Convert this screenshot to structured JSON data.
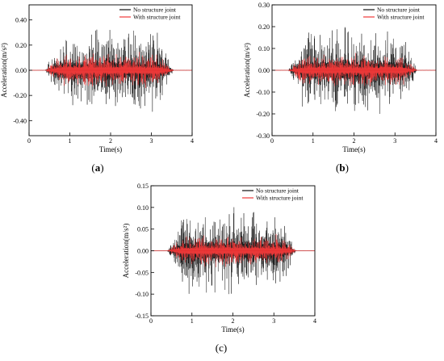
{
  "chart_data": [
    {
      "type": "line",
      "panel_label": "a",
      "xlabel": "Time(s)",
      "ylabel": "Acceleration(m/s²)",
      "xlim": [
        0,
        4
      ],
      "ylim": [
        -0.52,
        0.52
      ],
      "x_ticks": [
        0,
        1,
        2,
        3,
        4
      ],
      "x_tick_labels": [
        "0",
        "1",
        "2",
        "3",
        "4"
      ],
      "y_ticks": [
        -0.4,
        -0.2,
        0.0,
        0.2,
        0.4
      ],
      "y_tick_labels": [
        "-0.40",
        "-0.20",
        "0.00",
        "0.20",
        "0.40"
      ],
      "legend_position": "top-right",
      "series": [
        {
          "name": "No structure joint",
          "color": "#111111",
          "signal_start_s": 0.5,
          "signal_end_s": 3.4,
          "peak_amplitude": 0.36
        },
        {
          "name": "With structure joint",
          "color": "#f03a3a",
          "signal_start_s": 0.5,
          "signal_end_s": 3.4,
          "peak_amplitude": 0.15
        }
      ]
    },
    {
      "type": "line",
      "panel_label": "b",
      "xlabel": "Time(s)",
      "ylabel": "Acceleration(m/s²)",
      "xlim": [
        0,
        4
      ],
      "ylim": [
        -0.3,
        0.3
      ],
      "x_ticks": [
        0,
        1,
        2,
        3,
        4
      ],
      "x_tick_labels": [
        "0",
        "1",
        "2",
        "3",
        "4"
      ],
      "y_ticks": [
        -0.3,
        -0.2,
        -0.1,
        0.0,
        0.1,
        0.2,
        0.3
      ],
      "y_tick_labels": [
        "-0.30",
        "-0.20",
        "-0.10",
        "0.00",
        "0.10",
        "0.20",
        "0.30"
      ],
      "legend_position": "top-right",
      "series": [
        {
          "name": "No structure joint",
          "color": "#111111",
          "signal_start_s": 0.5,
          "signal_end_s": 3.4,
          "peak_amplitude": 0.21
        },
        {
          "name": "With structure joint",
          "color": "#f03a3a",
          "signal_start_s": 0.5,
          "signal_end_s": 3.4,
          "peak_amplitude": 0.08
        }
      ]
    },
    {
      "type": "line",
      "panel_label": "c",
      "xlabel": "Time(s)",
      "ylabel": "Acceleration(m/s²)",
      "xlim": [
        0,
        4
      ],
      "ylim": [
        -0.15,
        0.15
      ],
      "x_ticks": [
        0,
        1,
        2,
        3,
        4
      ],
      "x_tick_labels": [
        "0",
        "1",
        "2",
        "3",
        "4"
      ],
      "y_ticks": [
        -0.15,
        -0.1,
        -0.05,
        0.0,
        0.05,
        0.1,
        0.15
      ],
      "y_tick_labels": [
        "-0.15",
        "-0.10",
        "-0.05",
        "0.00",
        "0.05",
        "0.10",
        "0.15"
      ],
      "legend_position": "top-right",
      "series": [
        {
          "name": "No structure joint",
          "color": "#111111",
          "signal_start_s": 0.5,
          "signal_end_s": 3.4,
          "peak_amplitude": 0.105
        },
        {
          "name": "With structure joint",
          "color": "#f03a3a",
          "signal_start_s": 0.5,
          "signal_end_s": 3.4,
          "peak_amplitude": 0.04
        }
      ]
    }
  ]
}
